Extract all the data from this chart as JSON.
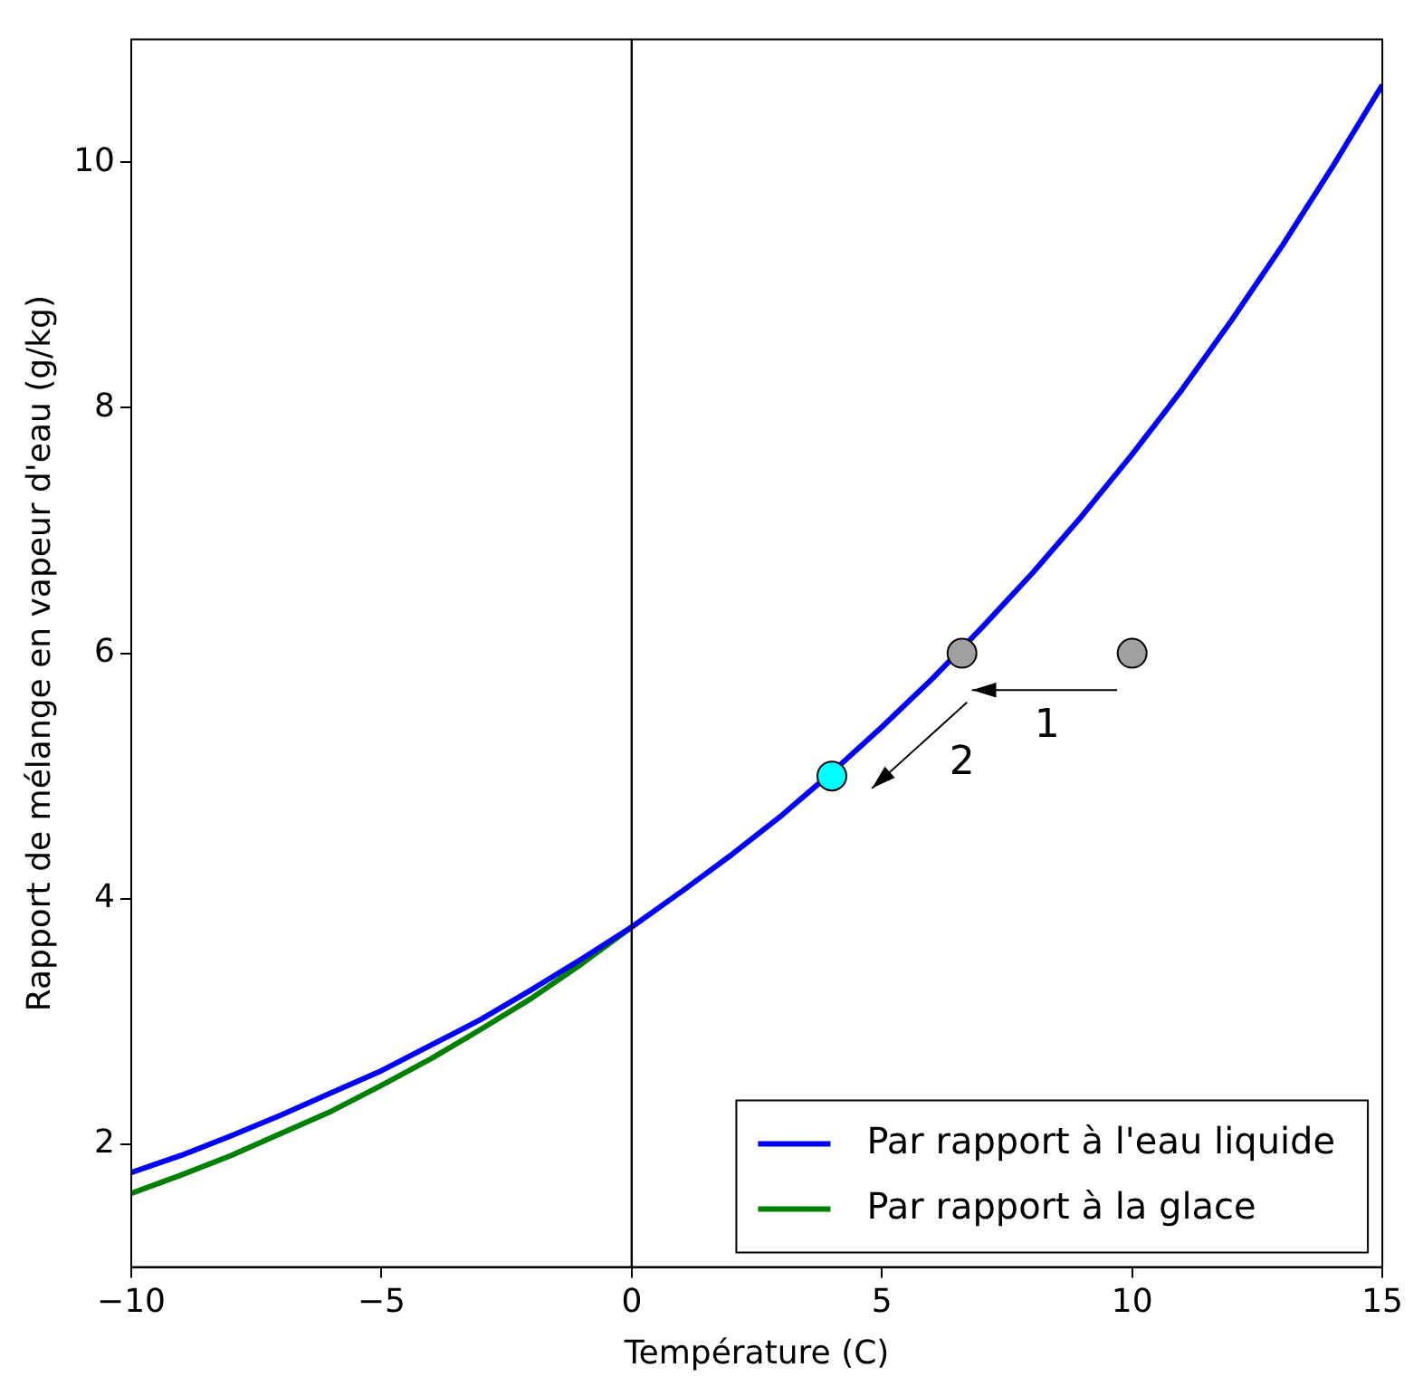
{
  "chart_data": {
    "type": "line",
    "xlabel": "Température (C)",
    "ylabel": "Rapport de mélange en vapeur d'eau (g/kg)",
    "xlim": [
      -10,
      15
    ],
    "ylim": [
      1,
      11
    ],
    "xticks": [
      {
        "value": -10,
        "label": "−10"
      },
      {
        "value": -5,
        "label": "−5"
      },
      0,
      5,
      10,
      15
    ],
    "yticks": [
      2,
      4,
      6,
      8,
      10
    ],
    "grid": false,
    "legend": "bottom right",
    "marker": "none",
    "line_style": "solid",
    "ref_lines": [
      {
        "axis": "x",
        "value": 0,
        "color": "#000000"
      }
    ],
    "annotations": [
      "1",
      "2"
    ],
    "series": [
      {
        "name": "Par rapport à l'eau liquide",
        "color": "#0000ff",
        "x": [
          -10,
          -9,
          -8,
          -7,
          -6,
          -5,
          -4,
          -3,
          -2,
          -1,
          0,
          1,
          2,
          3,
          4,
          5,
          6,
          7,
          8,
          9,
          10,
          11,
          12,
          13,
          14,
          15
        ],
        "values": [
          1.77,
          1.91,
          2.07,
          2.24,
          2.42,
          2.6,
          2.81,
          3.02,
          3.26,
          3.51,
          3.77,
          4.06,
          4.36,
          4.68,
          5.03,
          5.4,
          5.79,
          6.21,
          6.65,
          7.12,
          7.62,
          8.15,
          8.72,
          9.32,
          9.96,
          10.63
        ]
      },
      {
        "name": "Par rapport à la glace",
        "color": "#008000",
        "x": [
          -10,
          -9,
          -8,
          -7,
          -6,
          -5,
          -4,
          -3,
          -2,
          -1,
          0
        ],
        "values": [
          1.6,
          1.75,
          1.91,
          2.09,
          2.27,
          2.48,
          2.7,
          2.94,
          3.19,
          3.47,
          3.77
        ]
      },
      {
        "type": "scatter",
        "color": "#a0a0a0",
        "marker": "circle",
        "x": [
          6.6,
          10
        ],
        "values": [
          6,
          6
        ]
      },
      {
        "type": "scatter",
        "color": "#00ffff",
        "marker": "circle",
        "x": [
          4
        ],
        "values": [
          5
        ]
      }
    ]
  }
}
